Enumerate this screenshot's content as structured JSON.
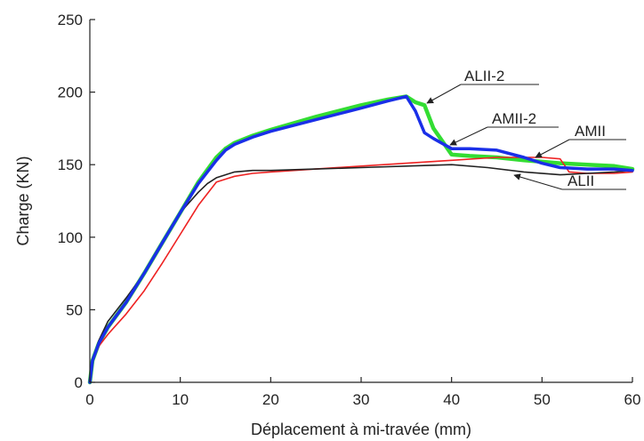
{
  "chart_data": {
    "type": "line",
    "title": "",
    "xlabel": "Déplacement à mi-travée (mm)",
    "ylabel": "Charge (KN)",
    "xlim": [
      0,
      60
    ],
    "ylim": [
      0,
      250
    ],
    "xticks": [
      0,
      10,
      20,
      30,
      40,
      50,
      60
    ],
    "yticks": [
      0,
      50,
      100,
      150,
      200,
      250
    ],
    "grid": false,
    "legend": "callouts",
    "series": [
      {
        "name": "ALII-2",
        "color": "#33dd33",
        "x": [
          0,
          0.3,
          1,
          2,
          4,
          6,
          8,
          10,
          12,
          14,
          15,
          16,
          18,
          20,
          25,
          30,
          33,
          35,
          36,
          37,
          38,
          40,
          42,
          45,
          48,
          50,
          52,
          55,
          58,
          60
        ],
        "y": [
          0,
          15,
          27,
          38,
          55,
          75,
          96,
          117,
          138,
          155,
          161,
          165,
          170,
          174,
          183,
          191,
          195,
          197,
          193,
          191,
          175,
          157,
          156,
          155,
          153,
          152,
          151,
          150,
          149,
          147
        ]
      },
      {
        "name": "AMII-2",
        "color": "#1a2fe8",
        "x": [
          0,
          0.3,
          1,
          2,
          4,
          6,
          8,
          10,
          12,
          14,
          15,
          16,
          18,
          20,
          25,
          30,
          33,
          35,
          36,
          37,
          38,
          40,
          42,
          45,
          48,
          50,
          52,
          55,
          58,
          60
        ],
        "y": [
          0,
          15,
          27,
          38,
          55,
          75,
          96,
          117,
          137,
          153,
          160,
          164,
          169,
          173,
          181,
          189,
          194,
          197,
          187,
          172,
          168,
          161,
          161,
          160,
          155,
          151,
          148,
          147,
          147,
          146
        ]
      },
      {
        "name": "AMII",
        "color": "#ee2222",
        "x": [
          0,
          0.3,
          1,
          2,
          4,
          6,
          8,
          10,
          12,
          14,
          15,
          16,
          18,
          20,
          25,
          30,
          35,
          40,
          45,
          50,
          52,
          53,
          55,
          58,
          60
        ],
        "y": [
          0,
          14,
          25,
          33,
          47,
          63,
          82,
          102,
          122,
          138,
          140,
          142,
          144,
          145,
          147,
          149,
          151,
          153,
          155,
          155,
          154,
          145,
          144,
          144,
          145
        ]
      },
      {
        "name": "ALII",
        "color": "#222222",
        "x": [
          0,
          0.3,
          1,
          2,
          4,
          6,
          8,
          10,
          12,
          13,
          14,
          15,
          16,
          18,
          20,
          25,
          30,
          35,
          40,
          44,
          48,
          52,
          55,
          58,
          60
        ],
        "y": [
          0,
          16,
          29,
          42,
          58,
          75,
          95,
          117,
          131,
          137,
          141,
          143,
          145,
          146,
          146,
          147,
          148,
          149,
          150,
          148,
          145,
          143,
          144,
          145,
          146
        ]
      }
    ],
    "callouts": [
      {
        "label": "ALII-2",
        "series": "ALII-2"
      },
      {
        "label": "AMII-2",
        "series": "AMII-2"
      },
      {
        "label": "AMII",
        "series": "AMII"
      },
      {
        "label": "ALII",
        "series": "ALII"
      }
    ]
  }
}
